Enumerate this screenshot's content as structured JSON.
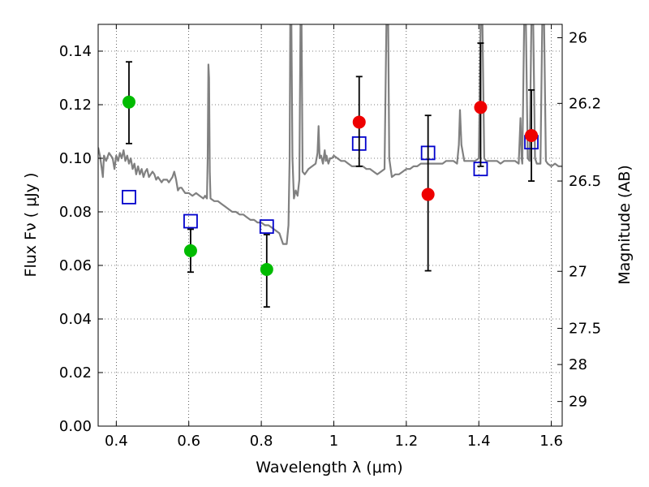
{
  "chart_data": {
    "type": "scatter",
    "xlabel": "Wavelength  λ (μm)",
    "ylabel": "Flux  Fν  ( μJy )",
    "y2label": "Magnitude (AB)",
    "xlim": [
      0.35,
      1.63
    ],
    "ylim": [
      0.0,
      0.15
    ],
    "grid": true,
    "x_ticks": [
      "0.4",
      "0.6",
      "0.8",
      "1",
      "1.2",
      "1.4",
      "1.6"
    ],
    "y_ticks": [
      "0.00",
      "0.02",
      "0.04",
      "0.06",
      "0.08",
      "0.10",
      "0.12",
      "0.14"
    ],
    "y2_ticks": [
      {
        "label": "26",
        "flux": 0.145
      },
      {
        "label": "26.2",
        "flux": 0.1205
      },
      {
        "label": "26.5",
        "flux": 0.0915
      },
      {
        "label": "27",
        "flux": 0.0578
      },
      {
        "label": "27.5",
        "flux": 0.0365
      },
      {
        "label": "28",
        "flux": 0.023
      },
      {
        "label": "29",
        "flux": 0.0092
      }
    ],
    "series": [
      {
        "kind": "spectrum",
        "color": "#808080",
        "points": [
          [
            0.35,
            0.104
          ],
          [
            0.355,
            0.101
          ],
          [
            0.36,
            0.096
          ],
          [
            0.363,
            0.093
          ],
          [
            0.366,
            0.101
          ],
          [
            0.372,
            0.099
          ],
          [
            0.38,
            0.102
          ],
          [
            0.39,
            0.1
          ],
          [
            0.395,
            0.096
          ],
          [
            0.4,
            0.101
          ],
          [
            0.405,
            0.099
          ],
          [
            0.41,
            0.102
          ],
          [
            0.415,
            0.1
          ],
          [
            0.42,
            0.103
          ],
          [
            0.425,
            0.099
          ],
          [
            0.43,
            0.101
          ],
          [
            0.435,
            0.098
          ],
          [
            0.44,
            0.1
          ],
          [
            0.445,
            0.096
          ],
          [
            0.45,
            0.098
          ],
          [
            0.455,
            0.094
          ],
          [
            0.46,
            0.097
          ],
          [
            0.465,
            0.094
          ],
          [
            0.47,
            0.096
          ],
          [
            0.475,
            0.093
          ],
          [
            0.48,
            0.095
          ],
          [
            0.485,
            0.096
          ],
          [
            0.49,
            0.093
          ],
          [
            0.495,
            0.094
          ],
          [
            0.5,
            0.095
          ],
          [
            0.505,
            0.094
          ],
          [
            0.51,
            0.092
          ],
          [
            0.515,
            0.093
          ],
          [
            0.52,
            0.092
          ],
          [
            0.525,
            0.091
          ],
          [
            0.53,
            0.092
          ],
          [
            0.535,
            0.092
          ],
          [
            0.54,
            0.092
          ],
          [
            0.545,
            0.091
          ],
          [
            0.55,
            0.092
          ],
          [
            0.555,
            0.093
          ],
          [
            0.56,
            0.095
          ],
          [
            0.565,
            0.092
          ],
          [
            0.57,
            0.088
          ],
          [
            0.575,
            0.089
          ],
          [
            0.58,
            0.089
          ],
          [
            0.585,
            0.088
          ],
          [
            0.59,
            0.087
          ],
          [
            0.6,
            0.087
          ],
          [
            0.61,
            0.086
          ],
          [
            0.62,
            0.087
          ],
          [
            0.63,
            0.086
          ],
          [
            0.64,
            0.085
          ],
          [
            0.645,
            0.086
          ],
          [
            0.65,
            0.085
          ],
          [
            0.652,
            0.1
          ],
          [
            0.654,
            0.135
          ],
          [
            0.656,
            0.13
          ],
          [
            0.658,
            0.095
          ],
          [
            0.66,
            0.085
          ],
          [
            0.67,
            0.084
          ],
          [
            0.68,
            0.084
          ],
          [
            0.69,
            0.083
          ],
          [
            0.7,
            0.082
          ],
          [
            0.71,
            0.081
          ],
          [
            0.72,
            0.08
          ],
          [
            0.73,
            0.08
          ],
          [
            0.74,
            0.079
          ],
          [
            0.75,
            0.079
          ],
          [
            0.76,
            0.078
          ],
          [
            0.77,
            0.077
          ],
          [
            0.78,
            0.077
          ],
          [
            0.79,
            0.076
          ],
          [
            0.8,
            0.076
          ],
          [
            0.81,
            0.075
          ],
          [
            0.82,
            0.075
          ],
          [
            0.83,
            0.074
          ],
          [
            0.84,
            0.073
          ],
          [
            0.85,
            0.072
          ],
          [
            0.86,
            0.068
          ],
          [
            0.87,
            0.068
          ],
          [
            0.875,
            0.075
          ],
          [
            0.878,
            0.1
          ],
          [
            0.88,
            0.15
          ],
          [
            0.883,
            0.15
          ],
          [
            0.886,
            0.1
          ],
          [
            0.89,
            0.085
          ],
          [
            0.895,
            0.088
          ],
          [
            0.9,
            0.086
          ],
          [
            0.905,
            0.092
          ],
          [
            0.908,
            0.15
          ],
          [
            0.911,
            0.15
          ],
          [
            0.914,
            0.095
          ],
          [
            0.92,
            0.094
          ],
          [
            0.93,
            0.096
          ],
          [
            0.94,
            0.097
          ],
          [
            0.95,
            0.098
          ],
          [
            0.955,
            0.102
          ],
          [
            0.958,
            0.112
          ],
          [
            0.961,
            0.1
          ],
          [
            0.965,
            0.101
          ],
          [
            0.97,
            0.098
          ],
          [
            0.975,
            0.103
          ],
          [
            0.978,
            0.099
          ],
          [
            0.98,
            0.101
          ],
          [
            0.985,
            0.098
          ],
          [
            0.99,
            0.1
          ],
          [
            0.995,
            0.1
          ],
          [
            1.0,
            0.101
          ],
          [
            1.01,
            0.1
          ],
          [
            1.02,
            0.099
          ],
          [
            1.03,
            0.099
          ],
          [
            1.04,
            0.098
          ],
          [
            1.05,
            0.097
          ],
          [
            1.06,
            0.097
          ],
          [
            1.07,
            0.097
          ],
          [
            1.08,
            0.097
          ],
          [
            1.09,
            0.096
          ],
          [
            1.1,
            0.096
          ],
          [
            1.11,
            0.095
          ],
          [
            1.12,
            0.094
          ],
          [
            1.13,
            0.095
          ],
          [
            1.14,
            0.096
          ],
          [
            1.145,
            0.15
          ],
          [
            1.15,
            0.15
          ],
          [
            1.153,
            0.1
          ],
          [
            1.16,
            0.093
          ],
          [
            1.17,
            0.094
          ],
          [
            1.18,
            0.094
          ],
          [
            1.19,
            0.095
          ],
          [
            1.2,
            0.096
          ],
          [
            1.21,
            0.096
          ],
          [
            1.22,
            0.097
          ],
          [
            1.23,
            0.097
          ],
          [
            1.24,
            0.098
          ],
          [
            1.25,
            0.098
          ],
          [
            1.26,
            0.098
          ],
          [
            1.27,
            0.098
          ],
          [
            1.28,
            0.098
          ],
          [
            1.29,
            0.098
          ],
          [
            1.3,
            0.098
          ],
          [
            1.31,
            0.099
          ],
          [
            1.32,
            0.099
          ],
          [
            1.33,
            0.099
          ],
          [
            1.34,
            0.098
          ],
          [
            1.345,
            0.105
          ],
          [
            1.348,
            0.118
          ],
          [
            1.352,
            0.105
          ],
          [
            1.36,
            0.099
          ],
          [
            1.37,
            0.099
          ],
          [
            1.38,
            0.099
          ],
          [
            1.39,
            0.099
          ],
          [
            1.4,
            0.1
          ],
          [
            1.405,
            0.15
          ],
          [
            1.41,
            0.15
          ],
          [
            1.415,
            0.1
          ],
          [
            1.42,
            0.099
          ],
          [
            1.43,
            0.099
          ],
          [
            1.44,
            0.099
          ],
          [
            1.45,
            0.099
          ],
          [
            1.46,
            0.098
          ],
          [
            1.47,
            0.099
          ],
          [
            1.48,
            0.099
          ],
          [
            1.49,
            0.099
          ],
          [
            1.5,
            0.099
          ],
          [
            1.51,
            0.098
          ],
          [
            1.515,
            0.115
          ],
          [
            1.518,
            0.1
          ],
          [
            1.52,
            0.098
          ],
          [
            1.525,
            0.15
          ],
          [
            1.53,
            0.15
          ],
          [
            1.535,
            0.1
          ],
          [
            1.54,
            0.099
          ],
          [
            1.545,
            0.15
          ],
          [
            1.55,
            0.15
          ],
          [
            1.555,
            0.1
          ],
          [
            1.56,
            0.098
          ],
          [
            1.57,
            0.098
          ],
          [
            1.575,
            0.15
          ],
          [
            1.58,
            0.15
          ],
          [
            1.585,
            0.099
          ],
          [
            1.59,
            0.098
          ],
          [
            1.6,
            0.097
          ],
          [
            1.61,
            0.098
          ],
          [
            1.62,
            0.097
          ],
          [
            1.63,
            0.097
          ]
        ]
      },
      {
        "kind": "model-bands",
        "marker": "open-square",
        "color": "#0000cc",
        "points": [
          [
            0.435,
            0.0855
          ],
          [
            0.605,
            0.0765
          ],
          [
            0.815,
            0.0745
          ],
          [
            1.07,
            0.1055
          ],
          [
            1.26,
            0.102
          ],
          [
            1.405,
            0.096
          ],
          [
            1.545,
            0.106
          ]
        ]
      },
      {
        "kind": "observed-green",
        "marker": "filled-circle",
        "color": "#00bb00",
        "points": [
          {
            "x": 0.435,
            "y": 0.121,
            "err_lo": 0.0155,
            "err_hi": 0.015
          },
          {
            "x": 0.605,
            "y": 0.0655,
            "err_lo": 0.008,
            "err_hi": 0.008
          },
          {
            "x": 0.815,
            "y": 0.0585,
            "err_lo": 0.014,
            "err_hi": 0.013
          }
        ]
      },
      {
        "kind": "observed-red",
        "marker": "filled-circle",
        "color": "#ee0000",
        "points": [
          {
            "x": 1.07,
            "y": 0.1135,
            "err_lo": 0.0165,
            "err_hi": 0.017
          },
          {
            "x": 1.26,
            "y": 0.0865,
            "err_lo": 0.0285,
            "err_hi": 0.0295
          },
          {
            "x": 1.405,
            "y": 0.119,
            "err_lo": 0.022,
            "err_hi": 0.024
          },
          {
            "x": 1.545,
            "y": 0.1085,
            "err_lo": 0.017,
            "err_hi": 0.017
          }
        ]
      }
    ]
  }
}
